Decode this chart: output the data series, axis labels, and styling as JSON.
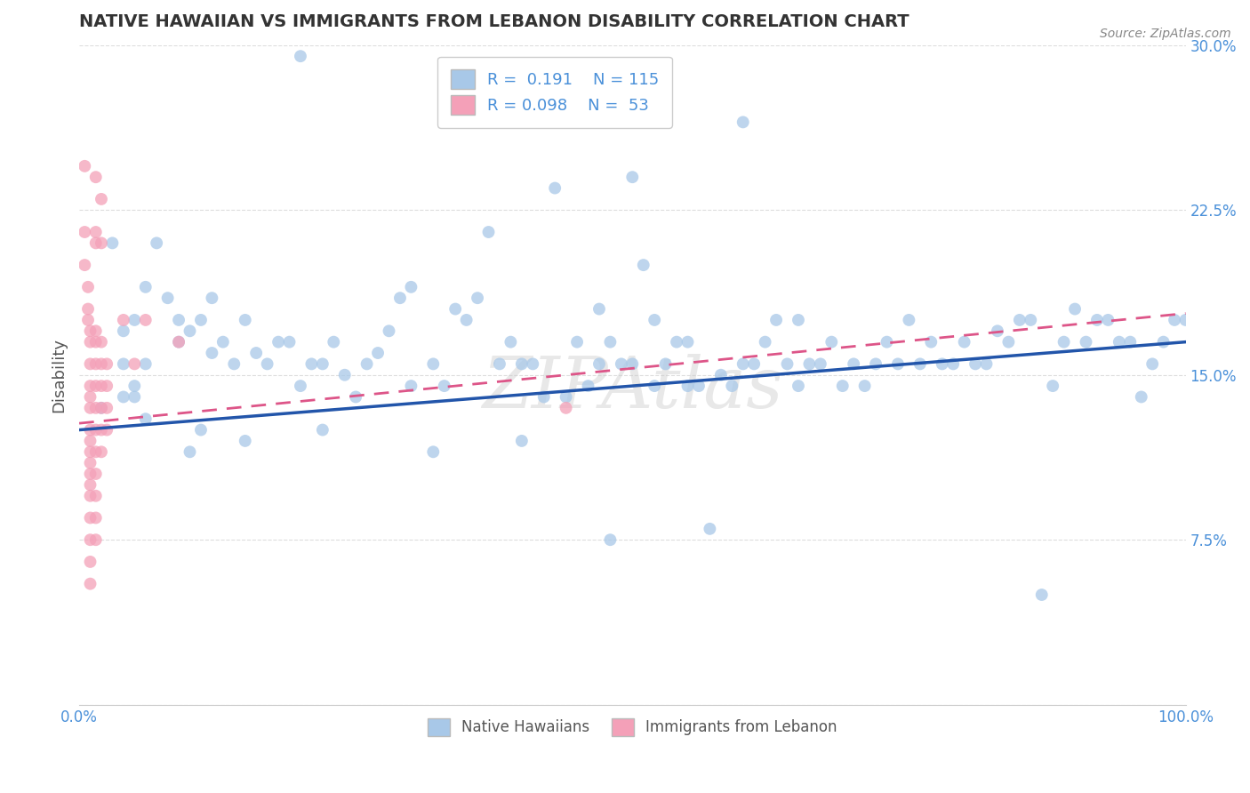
{
  "title": "NATIVE HAWAIIAN VS IMMIGRANTS FROM LEBANON DISABILITY CORRELATION CHART",
  "source": "Source: ZipAtlas.com",
  "ylabel": "Disability",
  "xlim": [
    0,
    1.0
  ],
  "ylim": [
    0,
    0.3
  ],
  "yticks": [
    0.0,
    0.075,
    0.15,
    0.225,
    0.3
  ],
  "ytick_labels": [
    "",
    "7.5%",
    "15.0%",
    "22.5%",
    "30.0%"
  ],
  "xtick_labels": [
    "0.0%",
    "100.0%"
  ],
  "legend_r1": "R =  0.191",
  "legend_n1": "N = 115",
  "legend_r2": "R = 0.098",
  "legend_n2": "N =  53",
  "blue_color": "#a8c8e8",
  "pink_color": "#f4a0b8",
  "blue_line_color": "#2255aa",
  "pink_line_color": "#dd5588",
  "grid_color": "#dddddd",
  "watermark": "ZIPAtlas",
  "blue_scatter": [
    [
      0.02,
      0.135
    ],
    [
      0.03,
      0.21
    ],
    [
      0.04,
      0.17
    ],
    [
      0.05,
      0.175
    ],
    [
      0.06,
      0.19
    ],
    [
      0.04,
      0.155
    ],
    [
      0.05,
      0.145
    ],
    [
      0.06,
      0.155
    ],
    [
      0.07,
      0.21
    ],
    [
      0.08,
      0.185
    ],
    [
      0.09,
      0.165
    ],
    [
      0.09,
      0.175
    ],
    [
      0.1,
      0.17
    ],
    [
      0.11,
      0.175
    ],
    [
      0.12,
      0.185
    ],
    [
      0.12,
      0.16
    ],
    [
      0.13,
      0.165
    ],
    [
      0.14,
      0.155
    ],
    [
      0.15,
      0.175
    ],
    [
      0.15,
      0.12
    ],
    [
      0.16,
      0.16
    ],
    [
      0.17,
      0.155
    ],
    [
      0.18,
      0.165
    ],
    [
      0.19,
      0.165
    ],
    [
      0.2,
      0.145
    ],
    [
      0.21,
      0.155
    ],
    [
      0.22,
      0.155
    ],
    [
      0.22,
      0.125
    ],
    [
      0.23,
      0.165
    ],
    [
      0.24,
      0.15
    ],
    [
      0.25,
      0.14
    ],
    [
      0.26,
      0.155
    ],
    [
      0.27,
      0.16
    ],
    [
      0.28,
      0.17
    ],
    [
      0.29,
      0.185
    ],
    [
      0.3,
      0.19
    ],
    [
      0.3,
      0.145
    ],
    [
      0.32,
      0.155
    ],
    [
      0.32,
      0.115
    ],
    [
      0.33,
      0.145
    ],
    [
      0.34,
      0.18
    ],
    [
      0.35,
      0.175
    ],
    [
      0.36,
      0.185
    ],
    [
      0.37,
      0.215
    ],
    [
      0.38,
      0.155
    ],
    [
      0.39,
      0.165
    ],
    [
      0.4,
      0.155
    ],
    [
      0.4,
      0.12
    ],
    [
      0.41,
      0.155
    ],
    [
      0.42,
      0.14
    ],
    [
      0.43,
      0.235
    ],
    [
      0.44,
      0.14
    ],
    [
      0.45,
      0.165
    ],
    [
      0.46,
      0.145
    ],
    [
      0.47,
      0.18
    ],
    [
      0.47,
      0.155
    ],
    [
      0.48,
      0.165
    ],
    [
      0.48,
      0.075
    ],
    [
      0.49,
      0.155
    ],
    [
      0.5,
      0.155
    ],
    [
      0.5,
      0.24
    ],
    [
      0.51,
      0.2
    ],
    [
      0.52,
      0.175
    ],
    [
      0.52,
      0.145
    ],
    [
      0.53,
      0.155
    ],
    [
      0.54,
      0.165
    ],
    [
      0.55,
      0.165
    ],
    [
      0.55,
      0.145
    ],
    [
      0.56,
      0.145
    ],
    [
      0.57,
      0.08
    ],
    [
      0.58,
      0.15
    ],
    [
      0.59,
      0.145
    ],
    [
      0.6,
      0.155
    ],
    [
      0.6,
      0.265
    ],
    [
      0.61,
      0.155
    ],
    [
      0.62,
      0.165
    ],
    [
      0.63,
      0.175
    ],
    [
      0.64,
      0.155
    ],
    [
      0.65,
      0.175
    ],
    [
      0.65,
      0.145
    ],
    [
      0.66,
      0.155
    ],
    [
      0.67,
      0.155
    ],
    [
      0.68,
      0.165
    ],
    [
      0.69,
      0.145
    ],
    [
      0.7,
      0.155
    ],
    [
      0.71,
      0.145
    ],
    [
      0.72,
      0.155
    ],
    [
      0.73,
      0.165
    ],
    [
      0.74,
      0.155
    ],
    [
      0.75,
      0.175
    ],
    [
      0.76,
      0.155
    ],
    [
      0.77,
      0.165
    ],
    [
      0.78,
      0.155
    ],
    [
      0.79,
      0.155
    ],
    [
      0.8,
      0.165
    ],
    [
      0.81,
      0.155
    ],
    [
      0.82,
      0.155
    ],
    [
      0.83,
      0.17
    ],
    [
      0.84,
      0.165
    ],
    [
      0.85,
      0.175
    ],
    [
      0.86,
      0.175
    ],
    [
      0.87,
      0.05
    ],
    [
      0.88,
      0.145
    ],
    [
      0.89,
      0.165
    ],
    [
      0.9,
      0.18
    ],
    [
      0.91,
      0.165
    ],
    [
      0.92,
      0.175
    ],
    [
      0.93,
      0.175
    ],
    [
      0.94,
      0.165
    ],
    [
      0.95,
      0.165
    ],
    [
      0.96,
      0.14
    ],
    [
      0.97,
      0.155
    ],
    [
      0.98,
      0.165
    ],
    [
      0.99,
      0.175
    ],
    [
      1.0,
      0.175
    ],
    [
      0.2,
      0.295
    ],
    [
      0.49,
      0.275
    ],
    [
      0.11,
      0.125
    ],
    [
      0.1,
      0.115
    ],
    [
      0.06,
      0.13
    ],
    [
      0.04,
      0.14
    ],
    [
      0.05,
      0.14
    ]
  ],
  "pink_scatter": [
    [
      0.005,
      0.245
    ],
    [
      0.005,
      0.215
    ],
    [
      0.005,
      0.2
    ],
    [
      0.008,
      0.19
    ],
    [
      0.008,
      0.18
    ],
    [
      0.008,
      0.175
    ],
    [
      0.01,
      0.17
    ],
    [
      0.01,
      0.165
    ],
    [
      0.01,
      0.155
    ],
    [
      0.01,
      0.145
    ],
    [
      0.01,
      0.14
    ],
    [
      0.01,
      0.135
    ],
    [
      0.01,
      0.125
    ],
    [
      0.01,
      0.12
    ],
    [
      0.01,
      0.115
    ],
    [
      0.01,
      0.11
    ],
    [
      0.01,
      0.105
    ],
    [
      0.01,
      0.1
    ],
    [
      0.01,
      0.095
    ],
    [
      0.01,
      0.085
    ],
    [
      0.01,
      0.075
    ],
    [
      0.01,
      0.065
    ],
    [
      0.01,
      0.055
    ],
    [
      0.015,
      0.24
    ],
    [
      0.015,
      0.215
    ],
    [
      0.015,
      0.21
    ],
    [
      0.015,
      0.17
    ],
    [
      0.015,
      0.165
    ],
    [
      0.015,
      0.155
    ],
    [
      0.015,
      0.145
    ],
    [
      0.015,
      0.135
    ],
    [
      0.015,
      0.125
    ],
    [
      0.015,
      0.115
    ],
    [
      0.015,
      0.105
    ],
    [
      0.015,
      0.095
    ],
    [
      0.015,
      0.085
    ],
    [
      0.015,
      0.075
    ],
    [
      0.02,
      0.23
    ],
    [
      0.02,
      0.21
    ],
    [
      0.02,
      0.165
    ],
    [
      0.02,
      0.155
    ],
    [
      0.02,
      0.145
    ],
    [
      0.02,
      0.135
    ],
    [
      0.02,
      0.125
    ],
    [
      0.02,
      0.115
    ],
    [
      0.025,
      0.155
    ],
    [
      0.025,
      0.145
    ],
    [
      0.025,
      0.135
    ],
    [
      0.025,
      0.125
    ],
    [
      0.04,
      0.175
    ],
    [
      0.05,
      0.155
    ],
    [
      0.06,
      0.175
    ],
    [
      0.09,
      0.165
    ],
    [
      0.44,
      0.135
    ]
  ],
  "blue_reg": [
    0.0,
    1.0,
    0.125,
    0.165
  ],
  "pink_reg": [
    0.0,
    1.0,
    0.128,
    0.178
  ]
}
